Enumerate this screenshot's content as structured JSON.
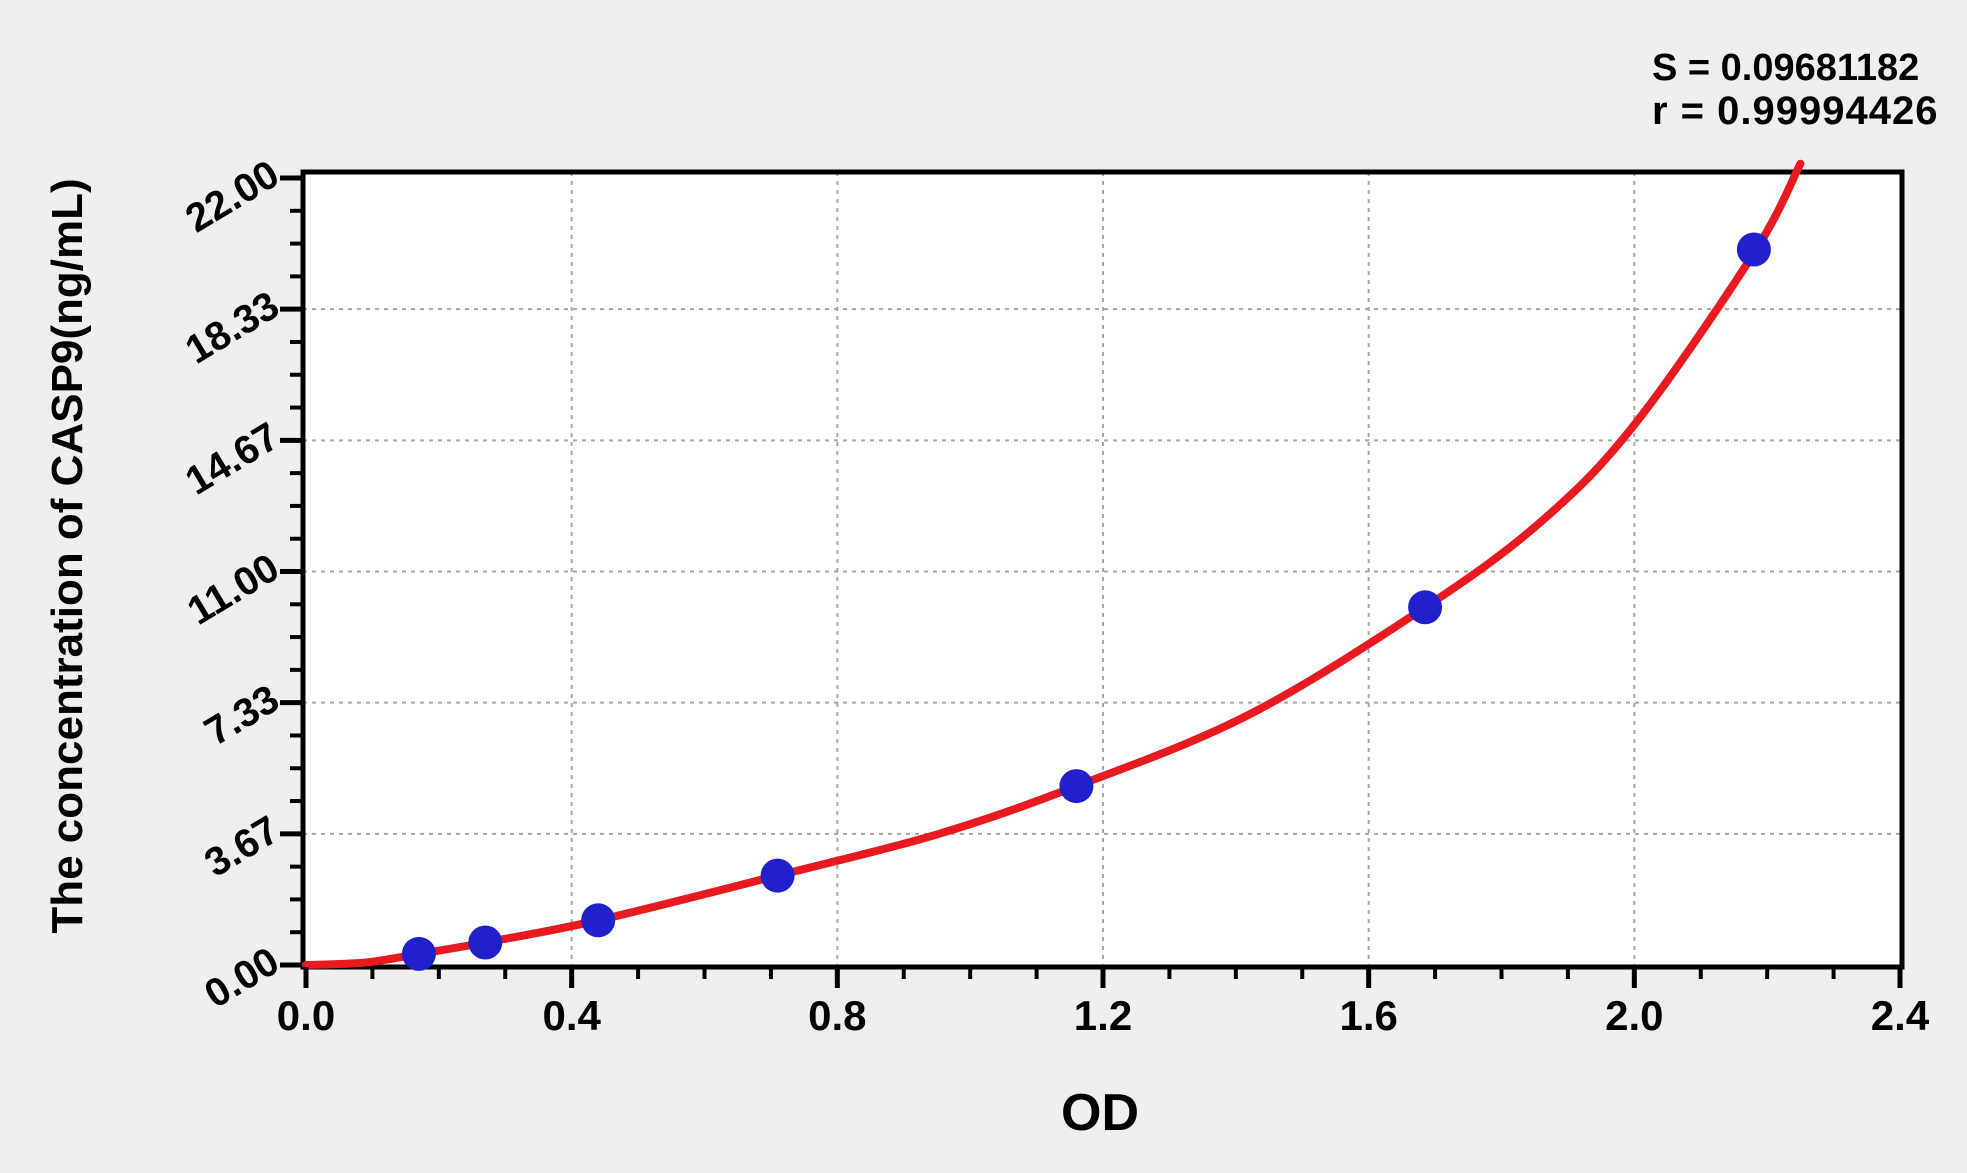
{
  "page": {
    "background_color": "#efefef",
    "plot_background": "#ffffff"
  },
  "stats_panel": {
    "s_line": "S = 0.09681182",
    "r_line": "r = 0.99994426"
  },
  "chart_data": {
    "type": "scatter",
    "title": "",
    "xlabel": "OD",
    "ylabel": "The concentration of CASP9(ng/mL)",
    "xlim": [
      0,
      2.4
    ],
    "ylim": [
      0,
      22
    ],
    "x_major_ticks": [
      0,
      0.4,
      0.8,
      1.2,
      1.6,
      2.0,
      2.4
    ],
    "x_tick_labels": [
      "0.0",
      "0.4",
      "0.8",
      "1.2",
      "1.6",
      "2.0",
      "2.4"
    ],
    "x_minor_step": 0.1,
    "y_major_ticks": [
      0,
      3.6667,
      7.3333,
      11.0,
      14.6667,
      18.3333,
      22.0
    ],
    "y_tick_labels": [
      "0.00",
      "3.67",
      "7.33",
      "11.00",
      "14.67",
      "18.33",
      "22.00"
    ],
    "y_minor_per_major": 4,
    "grid": "dashed-major",
    "legend": "none",
    "colors": {
      "curve": "#e8191f",
      "points": "#2121cc",
      "gridline": "#a6a6a6",
      "axis": "#000000"
    },
    "series": [
      {
        "name": "standard-points",
        "type": "scatter",
        "color": "#2121cc",
        "points_od": [
          0.17,
          0.27,
          0.44,
          0.71,
          1.16,
          1.685,
          2.18
        ],
        "points_conc": [
          0.31,
          0.63,
          1.25,
          2.5,
          5.0,
          10.0,
          20.0
        ]
      },
      {
        "name": "fitted-curve",
        "type": "line",
        "color": "#e8191f",
        "curve_od": [
          0,
          0.09,
          0.17,
          0.27,
          0.44,
          0.71,
          0.95,
          1.16,
          1.42,
          1.685,
          1.86,
          2.0,
          2.18,
          2.25
        ],
        "curve_conc": [
          0,
          0.07,
          0.31,
          0.63,
          1.25,
          2.5,
          3.65,
          5.0,
          7.0,
          10.0,
          12.4,
          15.1,
          19.9,
          22.4
        ]
      }
    ],
    "stats": {
      "S": "0.09681182",
      "r": "0.99994426"
    }
  }
}
